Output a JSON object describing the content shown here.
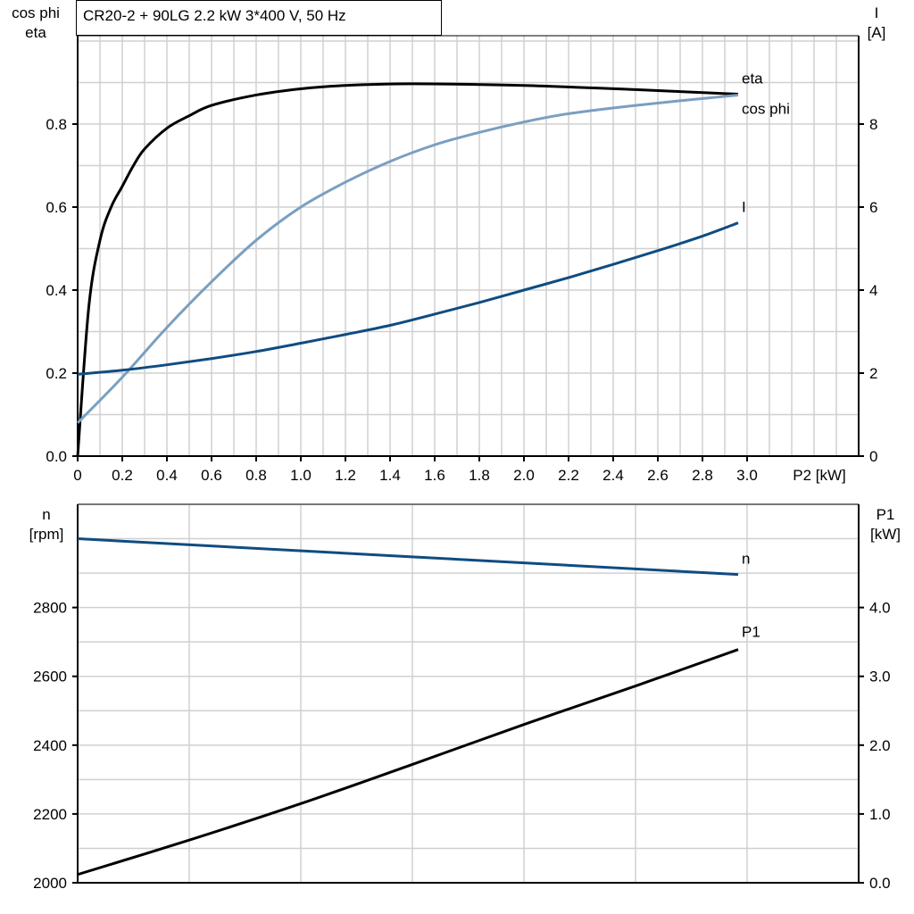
{
  "title": "CR20-2 + 90LG   2.2 kW   3*400 V, 50 Hz",
  "colors": {
    "eta": "#000000",
    "cos_phi": "#7a9fc0",
    "I": "#0f4c81",
    "n": "#0f4c81",
    "P1": "#000000",
    "grid": "#d0d0d0"
  },
  "chart_data": [
    {
      "type": "line",
      "xlabel": "P2 [kW]",
      "xlim": [
        0,
        3.5
      ],
      "x_ticks": [
        "0",
        "0.2",
        "0.4",
        "0.6",
        "0.8",
        "1.0",
        "1.2",
        "1.4",
        "1.6",
        "1.8",
        "2.0",
        "2.2",
        "2.4",
        "2.6",
        "2.8",
        "3.0"
      ],
      "ylabel_left": [
        "cos phi",
        "eta"
      ],
      "ylim_left": [
        0,
        1.0
      ],
      "y_ticks_left": [
        "0.0",
        "0.2",
        "0.4",
        "0.6",
        "0.8"
      ],
      "ylabel_right": [
        "I",
        "[A]"
      ],
      "ylim_right": [
        0,
        10
      ],
      "y_ticks_right": [
        "0",
        "2",
        "4",
        "6",
        "8"
      ],
      "grid": true,
      "series": [
        {
          "name": "eta",
          "axis": "left",
          "x": [
            0,
            0.05,
            0.1,
            0.15,
            0.2,
            0.25,
            0.3,
            0.4,
            0.5,
            0.6,
            0.8,
            1.0,
            1.2,
            1.5,
            2.0,
            2.5,
            2.96
          ],
          "y": [
            0,
            0.36,
            0.52,
            0.6,
            0.65,
            0.7,
            0.74,
            0.79,
            0.82,
            0.845,
            0.87,
            0.885,
            0.893,
            0.897,
            0.893,
            0.883,
            0.872
          ]
        },
        {
          "name": "cos phi",
          "axis": "left",
          "x": [
            0,
            0.2,
            0.4,
            0.6,
            0.8,
            1.0,
            1.2,
            1.4,
            1.6,
            1.8,
            2.0,
            2.2,
            2.5,
            2.96
          ],
          "y": [
            0.08,
            0.19,
            0.31,
            0.42,
            0.52,
            0.6,
            0.66,
            0.71,
            0.75,
            0.78,
            0.805,
            0.825,
            0.845,
            0.87
          ]
        },
        {
          "name": "I",
          "axis": "right",
          "x": [
            0,
            0.2,
            0.4,
            0.6,
            0.8,
            1.0,
            1.2,
            1.4,
            1.6,
            1.8,
            2.0,
            2.2,
            2.4,
            2.6,
            2.8,
            2.96
          ],
          "y": [
            1.97,
            2.07,
            2.2,
            2.35,
            2.52,
            2.72,
            2.93,
            3.15,
            3.42,
            3.7,
            4.0,
            4.3,
            4.62,
            4.95,
            5.3,
            5.62
          ]
        }
      ]
    },
    {
      "type": "line",
      "xlim": [
        0,
        3.5
      ],
      "ylabel_left": [
        "n",
        "[rpm]"
      ],
      "ylim_left": [
        2000,
        3100
      ],
      "y_ticks_left": [
        "2000",
        "2200",
        "2400",
        "2600",
        "2800"
      ],
      "ylabel_right": [
        "P1",
        "[kW]"
      ],
      "ylim_right": [
        0,
        5.5
      ],
      "y_ticks_right": [
        "0.0",
        "1.0",
        "2.0",
        "3.0",
        "4.0"
      ],
      "grid": true,
      "series": [
        {
          "name": "n",
          "axis": "left",
          "x": [
            0,
            2.96
          ],
          "y": [
            3000,
            2896
          ]
        },
        {
          "name": "P1",
          "axis": "right",
          "x": [
            0,
            0.5,
            1.0,
            1.5,
            2.0,
            2.5,
            2.96
          ],
          "y": [
            0.12,
            0.62,
            1.15,
            1.72,
            2.3,
            2.86,
            3.39
          ]
        }
      ]
    }
  ]
}
